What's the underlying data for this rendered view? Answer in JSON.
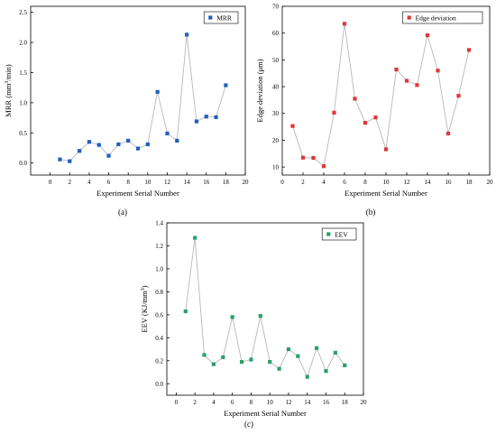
{
  "chart_data": [
    {
      "type": "line",
      "panel_label": "(a)",
      "xlabel": "Experiment Serial Number",
      "ylabel": "MRR (mm³/min)",
      "xlim": [
        -2,
        20
      ],
      "ylim": [
        -0.2,
        2.6
      ],
      "x_ticks": [
        "0",
        "2",
        "4",
        "6",
        "8",
        "10",
        "12",
        "14",
        "16",
        "18",
        "20"
      ],
      "y_ticks": [
        "0.0",
        "0.5",
        "1.0",
        "1.5",
        "2.0",
        "2.5"
      ],
      "grid": false,
      "legend_position": "top-right",
      "marker_color": "#1f5fbf",
      "series": [
        {
          "name": "MRR",
          "x": [
            1,
            2,
            3,
            4,
            5,
            6,
            7,
            8,
            9,
            10,
            11,
            12,
            13,
            14,
            15,
            16,
            17,
            18
          ],
          "values": [
            0.06,
            0.03,
            0.2,
            0.35,
            0.3,
            0.12,
            0.31,
            0.37,
            0.24,
            0.31,
            1.18,
            0.49,
            0.37,
            2.13,
            0.69,
            0.77,
            0.76,
            1.29
          ]
        }
      ]
    },
    {
      "type": "line",
      "panel_label": "(b)",
      "xlabel": "Experiment Serial Number",
      "ylabel": "Edge deviation (μm)",
      "xlim": [
        0,
        20
      ],
      "ylim": [
        7,
        70
      ],
      "x_ticks": [
        "0",
        "2",
        "4",
        "6",
        "8",
        "10",
        "12",
        "14",
        "16",
        "18",
        "20"
      ],
      "y_ticks": [
        "10",
        "20",
        "30",
        "40",
        "50",
        "60",
        "70"
      ],
      "grid": false,
      "legend_position": "top-right",
      "marker_color": "#e0363a",
      "series": [
        {
          "name": "Edge deviation",
          "x": [
            1,
            2,
            3,
            4,
            5,
            6,
            7,
            8,
            9,
            10,
            11,
            12,
            13,
            14,
            15,
            16,
            17,
            18
          ],
          "values": [
            25.3,
            13.5,
            13.4,
            10.3,
            30.3,
            63.5,
            35.5,
            26.5,
            28.5,
            16.6,
            46.4,
            42.2,
            40.6,
            59.2,
            46.0,
            22.5,
            36.6,
            53.7
          ]
        }
      ]
    },
    {
      "type": "line",
      "panel_label": "(c)",
      "xlabel": "Experiment Serial Number",
      "ylabel": "EEV (KJ/mm³)",
      "xlim": [
        -1,
        20
      ],
      "ylim": [
        -0.1,
        1.4
      ],
      "x_ticks": [
        "0",
        "2",
        "4",
        "6",
        "8",
        "10",
        "12",
        "14",
        "16",
        "18",
        "20"
      ],
      "y_ticks": [
        "0.0",
        "0.2",
        "0.4",
        "0.6",
        "0.8",
        "1.0",
        "1.2",
        "1.4"
      ],
      "grid": false,
      "legend_position": "top-right",
      "marker_color": "#2aa06a",
      "series": [
        {
          "name": "EEV",
          "x": [
            1,
            2,
            3,
            4,
            5,
            6,
            7,
            8,
            9,
            10,
            11,
            12,
            13,
            14,
            15,
            16,
            17,
            18
          ],
          "values": [
            0.63,
            1.27,
            0.25,
            0.17,
            0.23,
            0.58,
            0.19,
            0.21,
            0.59,
            0.19,
            0.13,
            0.3,
            0.24,
            0.06,
            0.31,
            0.11,
            0.27,
            0.16
          ]
        }
      ]
    }
  ]
}
